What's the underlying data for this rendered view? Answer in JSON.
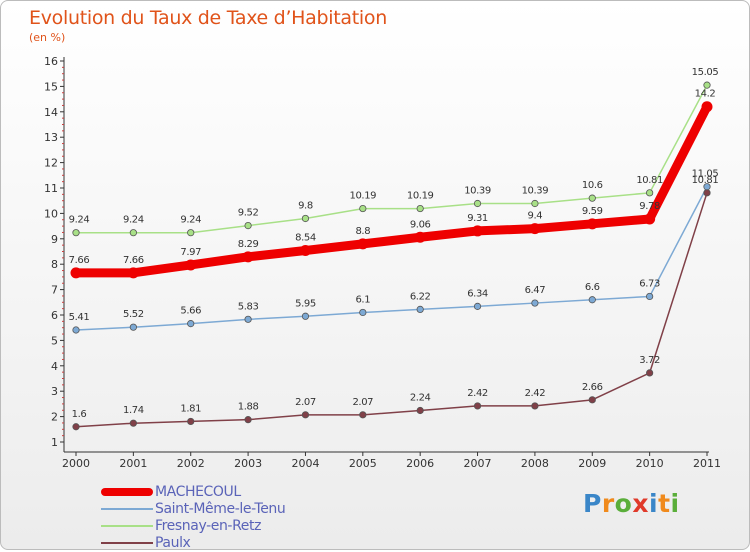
{
  "header": {
    "title": "Evolution du Taux de Taxe d’Habitation",
    "subtitle": "(en %)"
  },
  "logo": {
    "letters": [
      "P",
      "r",
      "o",
      "x",
      "i",
      "t",
      "i"
    ],
    "colors": [
      "#3a86c8",
      "#f08a1c",
      "#5aae3a",
      "#e03a2a",
      "#3a86c8",
      "#f08a1c",
      "#5aae3a"
    ]
  },
  "colors": {
    "title": "#e0531a",
    "axis": "#333333",
    "grid": "#d7d7d7",
    "legend_text": "#5a63b8"
  },
  "chart_data": {
    "type": "line",
    "title": "Evolution du Taux de Taxe d’Habitation",
    "subtitle": "(en %)",
    "xlabel": "",
    "ylabel": "(en %)",
    "x": [
      2000,
      2001,
      2002,
      2003,
      2004,
      2005,
      2006,
      2007,
      2008,
      2009,
      2010,
      2011
    ],
    "ylim": [
      1,
      16
    ],
    "yticks": [
      1,
      2,
      3,
      4,
      5,
      6,
      7,
      8,
      9,
      10,
      11,
      12,
      13,
      14,
      15,
      16
    ],
    "grid": false,
    "legend_position": "bottom-left",
    "series": [
      {
        "name": "MACHECOUL",
        "color": "#ee0000",
        "values": [
          7.66,
          7.66,
          7.97,
          8.29,
          8.54,
          8.8,
          9.06,
          9.31,
          9.4,
          9.59,
          9.78,
          14.2
        ],
        "labels": [
          "7.66",
          "7.66",
          "7.97",
          "8.29",
          "8.54",
          "8.8",
          "9.06",
          "9.31",
          "9.4",
          "9.59",
          "9.78",
          "14.2"
        ]
      },
      {
        "name": "Saint-Même-le-Tenu",
        "color": "#7da9d4",
        "values": [
          5.41,
          5.52,
          5.66,
          5.83,
          5.95,
          6.1,
          6.22,
          6.34,
          6.47,
          6.6,
          6.73,
          11.05
        ],
        "labels": [
          "5.41",
          "5.52",
          "5.66",
          "5.83",
          "5.95",
          "6.1",
          "6.22",
          "6.34",
          "6.47",
          "6.6",
          "6.73",
          "11.05"
        ]
      },
      {
        "name": "Fresnay-en-Retz",
        "color": "#a8e087",
        "values": [
          9.24,
          9.24,
          9.24,
          9.52,
          9.8,
          10.19,
          10.19,
          10.39,
          10.39,
          10.6,
          10.81,
          15.05
        ],
        "labels": [
          "9.24",
          "9.24",
          "9.24",
          "9.52",
          "9.8",
          "10.19",
          "10.19",
          "10.39",
          "10.39",
          "10.6",
          "10.81",
          "15.05"
        ]
      },
      {
        "name": "Paulx",
        "color": "#804048",
        "values": [
          1.6,
          1.74,
          1.81,
          1.88,
          2.07,
          2.07,
          2.24,
          2.42,
          2.42,
          2.66,
          3.72,
          10.81
        ],
        "labels": [
          "1.6",
          "1.74",
          "1.81",
          "1.88",
          "2.07",
          "2.07",
          "2.24",
          "2.42",
          "2.42",
          "2.66",
          "3.72",
          "10.81"
        ]
      }
    ]
  }
}
